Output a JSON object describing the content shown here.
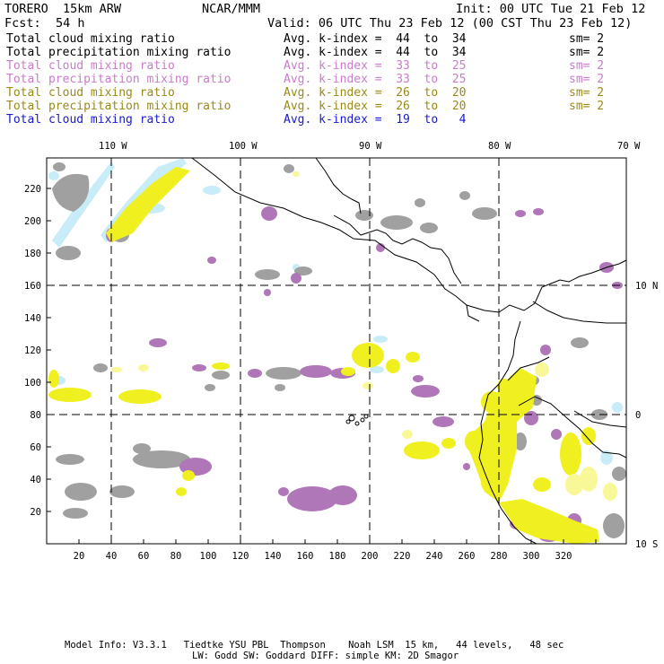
{
  "header": {
    "model": "TORERO  15km ARW",
    "org": "NCAR/MMM",
    "init": "Init: 00 UTC Tue 21 Feb 12",
    "fcst_label": "Fcst:",
    "fcst_value": "54 h",
    "valid": "Valid: 06 UTC Thu 23 Feb 12 (00 CST Thu 23 Feb 12)"
  },
  "legend": [
    {
      "field": "Total cloud mixing ratio",
      "kindex": "Avg. k-index =  44  to  34",
      "sm": "sm= 2",
      "color": "#000000"
    },
    {
      "field": "Total precipitation mixing ratio",
      "kindex": "Avg. k-index =  44  to  34",
      "sm": "sm= 2",
      "color": "#000000"
    },
    {
      "field": "Total cloud mixing ratio",
      "kindex": "Avg. k-index =  33  to  25",
      "sm": "sm= 2",
      "color": "#c87dc8"
    },
    {
      "field": "Total precipitation mixing ratio",
      "kindex": "Avg. k-index =  33  to  25",
      "sm": "sm= 2",
      "color": "#c87dc8"
    },
    {
      "field": "Total cloud mixing ratio",
      "kindex": "Avg. k-index =  26  to  20",
      "sm": "sm= 2",
      "color": "#9a8a18"
    },
    {
      "field": "Total precipitation mixing ratio",
      "kindex": "Avg. k-index =  26  to  20",
      "sm": "sm= 2",
      "color": "#9a8a18"
    },
    {
      "field": "Total cloud mixing ratio",
      "kindex": "Avg. k-index =  19  to   4",
      "sm": "",
      "color": "#1a1acc"
    }
  ],
  "map": {
    "lon_labels": [
      "110 W",
      "100 W",
      "90 W",
      "80 W",
      "70 W"
    ],
    "lat_labels": [
      "10 N",
      "0",
      "10 S"
    ],
    "x_ticks": [
      "20",
      "40",
      "60",
      "80",
      "100",
      "120",
      "140",
      "160",
      "180",
      "200",
      "220",
      "240",
      "260",
      "280",
      "300",
      "320"
    ],
    "y_ticks": [
      "20",
      "40",
      "60",
      "80",
      "100",
      "120",
      "140",
      "160",
      "180",
      "200",
      "220"
    ],
    "colors": {
      "gray": "#a0a0a0",
      "purple": "#b077b8",
      "yellow": "#f0f020",
      "lightyellow": "#f8f898",
      "cyan": "#c8ecf8"
    }
  },
  "footer": {
    "line1": "Model Info: V3.3.1   Tiedtke YSU PBL  Thompson    Noah LSM  15 km,   44 levels,   48 sec",
    "line2": "LW: Godd SW: Goddard DIFF: simple KM: 2D Smagor"
  }
}
